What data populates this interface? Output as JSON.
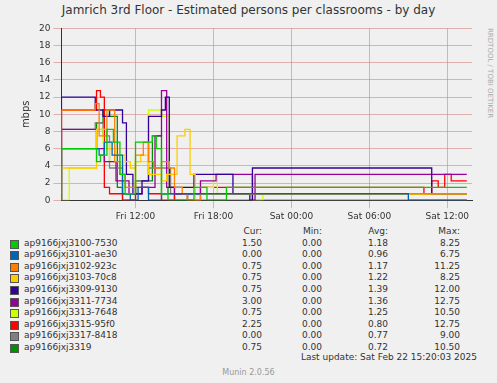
{
  "chart_data": {
    "type": "line",
    "title": "Jamrich 3rd Floor - Estimated persons per classrooms - by day",
    "y_label": "mbps",
    "watermark": "RRDTOOL / TOBI OETIKER",
    "footer": "Last update: Sat Feb 22 15:20:03 2025",
    "credit": "Munin 2.0.56",
    "legend_columns": [
      "Cur:",
      "Min:",
      "Avg:",
      "Max:"
    ],
    "xlim": [
      6.3,
      37.9
    ],
    "xticks": [
      {
        "value": 12,
        "label": "Fri 12:00"
      },
      {
        "value": 18,
        "label": "Fri 18:00"
      },
      {
        "value": 24,
        "label": "Sat 00:00"
      },
      {
        "value": 30,
        "label": "Sat 06:00"
      },
      {
        "value": 36,
        "label": "Sat 12:00"
      }
    ],
    "ylim": [
      0,
      20
    ],
    "yticks": [
      0,
      2,
      4,
      6,
      8,
      10,
      12,
      14,
      16,
      18,
      20
    ],
    "grid": true,
    "line_style": "steps",
    "series": [
      {
        "name": "ap9166jxj3100-7530",
        "color": "#00cc00",
        "cur": "1.50",
        "min": "0.00",
        "avg": "1.18",
        "max": "8.25",
        "x": [
          6.3,
          9.0,
          9.3,
          9.8,
          10.3,
          10.8,
          11.2,
          12.0,
          13.3,
          13.6,
          14.0,
          14.5,
          16.5,
          17.5,
          19.0,
          36.5,
          37.5
        ],
        "values": [
          0,
          6.0,
          4.5,
          5.25,
          8.25,
          6.75,
          3.0,
          0.75,
          6.75,
          7.5,
          6.0,
          0.75,
          0,
          1.5,
          0,
          1.5,
          1.5
        ]
      },
      {
        "name": "ap9166jxj3101-ae30",
        "color": "#0066b3",
        "cur": "0.00",
        "min": "0.00",
        "avg": "0.96",
        "max": "6.75",
        "x": [
          6.3,
          9.2,
          9.6,
          10.2,
          11.0,
          11.6,
          12.2,
          13.0,
          14.0,
          33.0,
          37.5
        ],
        "values": [
          0,
          6.0,
          5.25,
          6.75,
          5.25,
          0.75,
          0,
          1.5,
          0,
          0.75,
          0
        ]
      },
      {
        "name": "ap9166jxj3102-923c",
        "color": "#ff8000",
        "cur": "0.75",
        "min": "0.00",
        "avg": "1.17",
        "max": "11.25",
        "x": [
          6.3,
          8.9,
          9.2,
          9.8,
          10.4,
          10.8,
          11.2,
          12.0,
          12.6,
          13.0,
          13.4,
          14.0,
          14.6,
          15.0,
          15.6,
          16.0,
          17.0,
          37.2,
          37.5
        ],
        "values": [
          0,
          10.5,
          11.25,
          7.5,
          10.5,
          4.5,
          3.0,
          1.5,
          5.25,
          6.75,
          4.5,
          3.75,
          4.5,
          3.75,
          1.5,
          0.75,
          0,
          0.75,
          0.75
        ]
      },
      {
        "name": "ap9166jxj3103-70c8",
        "color": "#ffcc00",
        "cur": "0.75",
        "min": "0.00",
        "avg": "1.22",
        "max": "8.25",
        "x": [
          6.3,
          9.0,
          9.8,
          10.5,
          11.2,
          11.6,
          12.0,
          12.4,
          13.0,
          14.0,
          14.4,
          15.2,
          15.8,
          16.2,
          16.6,
          17.0,
          37.5
        ],
        "values": [
          0.75,
          3.75,
          8.25,
          6.0,
          5.25,
          4.5,
          3.75,
          4.5,
          5.25,
          3.0,
          2.25,
          3.0,
          7.5,
          8.25,
          3.0,
          0,
          0.75
        ]
      },
      {
        "name": "ap9166jxj3309-9130",
        "color": "#330099",
        "cur": "0.75",
        "min": "0.00",
        "avg": "1.39",
        "max": "12.00",
        "x": [
          6.3,
          8.9,
          9.5,
          10.0,
          11.0,
          11.3,
          11.8,
          12.5,
          13.0,
          14.0,
          14.3,
          14.6,
          15.0,
          16.5,
          19.5,
          20.8,
          21.0,
          34.8,
          36.3,
          37.5
        ],
        "values": [
          0,
          12.0,
          10.5,
          9.75,
          10.5,
          9.0,
          3.0,
          0.75,
          2.25,
          9.75,
          10.5,
          12.0,
          1.5,
          1.5,
          3.0,
          0.75,
          0,
          3.75,
          0.75,
          0.75
        ]
      },
      {
        "name": "ap9166jxj3311-7734",
        "color": "#990099",
        "cur": "3.00",
        "min": "0.00",
        "avg": "1.36",
        "max": "12.75",
        "x": [
          6.3,
          9.0,
          9.6,
          10.5,
          11.5,
          12.5,
          13.5,
          14.0,
          14.4,
          15.0,
          17.0,
          18.2,
          21.0,
          21.2,
          36.3,
          37.5
        ],
        "values": [
          0,
          8.25,
          6.0,
          4.5,
          2.25,
          0.75,
          1.5,
          7.5,
          12.75,
          1.5,
          0.75,
          2.25,
          3.0,
          0,
          3.0,
          3.0
        ]
      },
      {
        "name": "ap9166jxj3313-7648",
        "color": "#ccff00",
        "cur": "0.75",
        "min": "0.00",
        "avg": "1.25",
        "max": "10.50",
        "x": [
          6.3,
          6.9,
          9.0,
          9.5,
          10.0,
          11.0,
          12.0,
          13.0,
          14.0,
          14.6,
          15.0,
          18.0,
          18.3,
          21.0,
          21.8,
          37.5
        ],
        "values": [
          0.75,
          0,
          3.75,
          8.25,
          6.75,
          4.5,
          1.5,
          4.5,
          10.5,
          9.75,
          1.5,
          1.5,
          3.0,
          0.75,
          0,
          0.75
        ]
      },
      {
        "name": "ap9166jxj3315-95f0",
        "color": "#ff0000",
        "cur": "2.25",
        "min": "0.00",
        "avg": "0.80",
        "max": "12.75",
        "x": [
          6.3,
          9.0,
          9.3,
          9.6,
          10.0,
          10.4,
          11.0,
          12.0,
          13.0,
          14.0,
          15.0,
          16.0,
          17.0,
          34.2,
          34.8,
          35.3,
          35.8,
          36.3,
          37.0,
          37.5
        ],
        "values": [
          0,
          10.5,
          12.75,
          12.0,
          1.5,
          0.75,
          0.75,
          0,
          1.5,
          0.75,
          0,
          0.75,
          0,
          1.5,
          0.75,
          2.25,
          1.5,
          3.0,
          2.25,
          2.25
        ]
      },
      {
        "name": "ap9166jxj3317-8418",
        "color": "#808080",
        "cur": "0.00",
        "min": "0.00",
        "avg": "0.77",
        "max": "9.00",
        "x": [
          6.3,
          8.9,
          9.5,
          10.0,
          11.0,
          12.0,
          13.0,
          14.0,
          14.7,
          16.0,
          17.0,
          37.5
        ],
        "values": [
          0,
          8.25,
          9.0,
          7.5,
          3.75,
          0,
          2.25,
          3.75,
          3.75,
          0.75,
          0,
          0
        ]
      },
      {
        "name": "ap9166jxj3319",
        "color": "#008f00",
        "cur": "0.75",
        "min": "0.00",
        "avg": "0.72",
        "max": "10.50",
        "x": [
          6.3,
          9.0,
          9.5,
          10.0,
          10.6,
          11.0,
          12.0,
          13.3,
          14.0,
          14.5,
          15.0,
          16.0,
          35.0,
          37.5
        ],
        "values": [
          0,
          6.0,
          9.0,
          10.5,
          9.75,
          1.5,
          0.75,
          2.25,
          7.5,
          0.75,
          1.5,
          0,
          0.75,
          0.75
        ]
      }
    ]
  }
}
